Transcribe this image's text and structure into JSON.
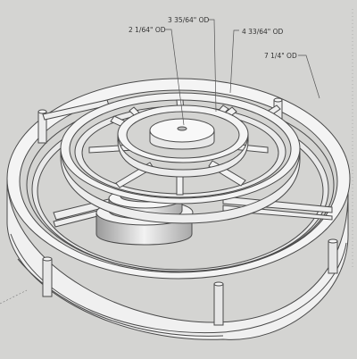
{
  "drawing": {
    "background": "#d4d4d2",
    "edge_color": "#4a4a4a",
    "face_light": "#f3f3f3",
    "face_shade": "#bdbdbd",
    "face_dark": "#8a8a8a"
  },
  "callouts": [
    {
      "id": "od-2-1-64",
      "text": "2 1/64\" OD"
    },
    {
      "id": "od-3-35-64",
      "text": "3 35/64\" OD"
    },
    {
      "id": "od-4-33-64",
      "text": "4 33/64\" OD"
    },
    {
      "id": "od-7-1-4",
      "text": "7 1/4\" OD"
    }
  ]
}
